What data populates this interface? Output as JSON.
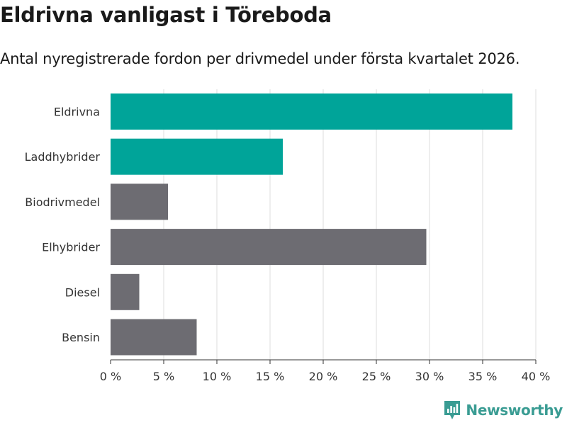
{
  "header": {
    "title": "Eldrivna vanligast i Töreboda",
    "subtitle": "Antal nyregistrerade fordon per drivmedel under första kvartalet 2026."
  },
  "brand": {
    "name": "Newsworthy",
    "icon": "bar-chart-logo-icon",
    "color": "#3a9c93"
  },
  "colors": {
    "highlight": "#00a499",
    "default": "#6d6c72",
    "grid": "#dddddd",
    "axis": "#333333"
  },
  "chart_data": {
    "type": "bar",
    "orientation": "horizontal",
    "title": "Eldrivna vanligast i Töreboda",
    "subtitle": "Antal nyregistrerade fordon per drivmedel under första kvartalet 2026.",
    "xlabel": "",
    "ylabel": "",
    "categories": [
      "Eldrivna",
      "Laddhybrider",
      "Biodrivmedel",
      "Elhybrider",
      "Diesel",
      "Bensin"
    ],
    "values": [
      37.8,
      16.2,
      5.4,
      29.7,
      2.7,
      8.1
    ],
    "highlighted": [
      true,
      true,
      false,
      false,
      false,
      false
    ],
    "xlim": [
      0,
      40
    ],
    "xticks": [
      0,
      5,
      10,
      15,
      20,
      25,
      30,
      35,
      40
    ],
    "xtick_labels": [
      "0 %",
      "5 %",
      "10 %",
      "15 %",
      "20 %",
      "25 %",
      "30 %",
      "35 %",
      "40 %"
    ],
    "grid": true,
    "legend": "none"
  }
}
